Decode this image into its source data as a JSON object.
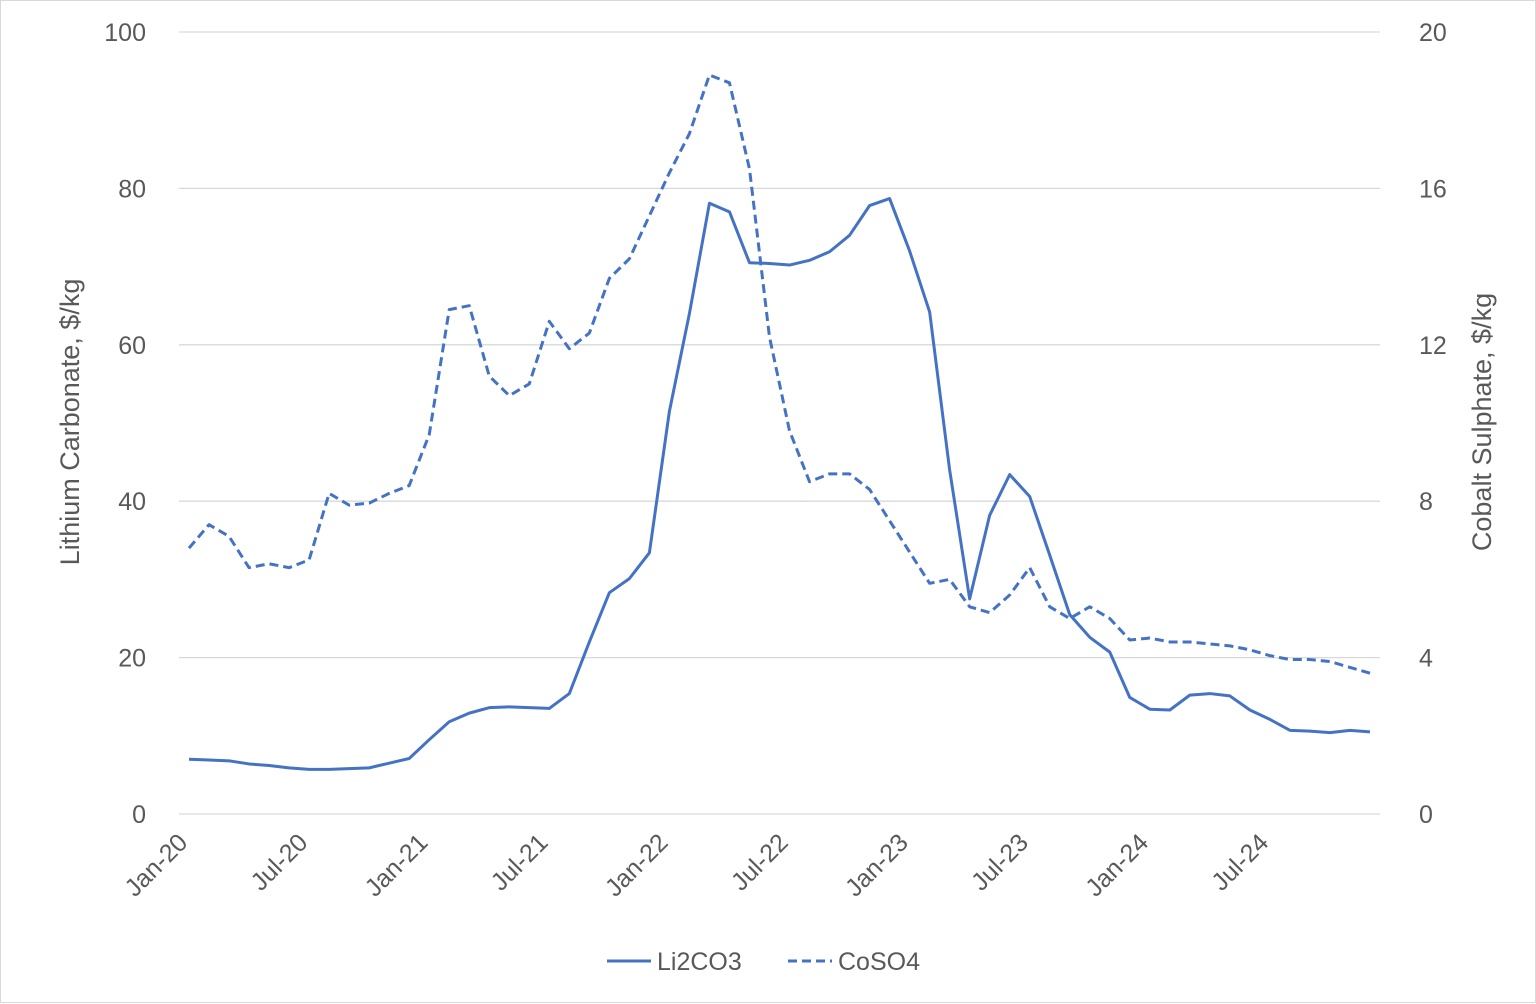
{
  "chart_data": {
    "type": "line",
    "title": "",
    "ylabel": "Lithium Carbonate, $/kg",
    "y2label": "Cobalt Sulphate, $/kg",
    "ylim": [
      0,
      100
    ],
    "y2lim": [
      0,
      20
    ],
    "yticks": [
      "0",
      "20",
      "40",
      "60",
      "80",
      "100"
    ],
    "y2ticks": [
      "0",
      "4",
      "8",
      "12",
      "16",
      "20"
    ],
    "xticks": [
      "Jan-20",
      "Jul-20",
      "Jan-21",
      "Jul-21",
      "Jan-22",
      "Jul-22",
      "Jan-23",
      "Jul-23",
      "Jan-24",
      "Jul-24"
    ],
    "grid": true,
    "legend_position": "bottom",
    "x": [
      "2020-01",
      "2020-02",
      "2020-03",
      "2020-04",
      "2020-05",
      "2020-06",
      "2020-07",
      "2020-08",
      "2020-09",
      "2020-10",
      "2020-11",
      "2020-12",
      "2021-01",
      "2021-02",
      "2021-03",
      "2021-04",
      "2021-05",
      "2021-06",
      "2021-07",
      "2021-08",
      "2021-09",
      "2021-10",
      "2021-11",
      "2021-12",
      "2022-01",
      "2022-02",
      "2022-03",
      "2022-04",
      "2022-05",
      "2022-06",
      "2022-07",
      "2022-08",
      "2022-09",
      "2022-10",
      "2022-11",
      "2022-12",
      "2023-01",
      "2023-02",
      "2023-03",
      "2023-04",
      "2023-05",
      "2023-06",
      "2023-07",
      "2023-08",
      "2023-09",
      "2023-10",
      "2023-11",
      "2023-12",
      "2024-01",
      "2024-02",
      "2024-03",
      "2024-04",
      "2024-05",
      "2024-06",
      "2024-07",
      "2024-08",
      "2024-09",
      "2024-10",
      "2024-11",
      "2024-12"
    ],
    "series": [
      {
        "name": "Li2CO3",
        "axis": "left",
        "style": "solid",
        "color": "#4472c4",
        "values": [
          7.0,
          6.9,
          6.8,
          6.4,
          6.2,
          5.9,
          5.7,
          5.7,
          5.8,
          5.9,
          6.5,
          7.1,
          9.5,
          11.8,
          12.9,
          13.6,
          13.7,
          13.6,
          13.5,
          15.4,
          22.0,
          28.3,
          30.1,
          33.4,
          51.5,
          64.0,
          78.1,
          77.0,
          70.5,
          70.4,
          70.2,
          70.8,
          71.9,
          74.0,
          77.8,
          78.7,
          72.0,
          64.2,
          44.0,
          27.5,
          38.2,
          43.4,
          40.6,
          33.1,
          25.5,
          22.6,
          20.7,
          14.9,
          13.4,
          13.3,
          15.2,
          15.4,
          15.1,
          13.3,
          12.1,
          10.7,
          10.6,
          10.4,
          10.7,
          10.5
        ]
      },
      {
        "name": "CoSO4",
        "axis": "right",
        "style": "dashed",
        "color": "#4472c4",
        "values": [
          6.8,
          7.4,
          7.1,
          6.3,
          6.4,
          6.3,
          6.5,
          8.2,
          7.9,
          7.95,
          8.2,
          8.4,
          9.7,
          12.9,
          13.0,
          11.2,
          10.7,
          11.0,
          12.6,
          11.9,
          12.3,
          13.7,
          14.2,
          15.3,
          16.4,
          17.4,
          18.9,
          18.7,
          16.5,
          12.2,
          9.8,
          8.5,
          8.7,
          8.7,
          8.3,
          7.5,
          6.7,
          5.9,
          6.0,
          5.3,
          5.15,
          5.6,
          6.3,
          5.3,
          5.0,
          5.3,
          5.0,
          4.45,
          4.5,
          4.4,
          4.4,
          4.35,
          4.3,
          4.2,
          4.05,
          3.95,
          3.95,
          3.9,
          3.75,
          3.6
        ]
      }
    ]
  }
}
